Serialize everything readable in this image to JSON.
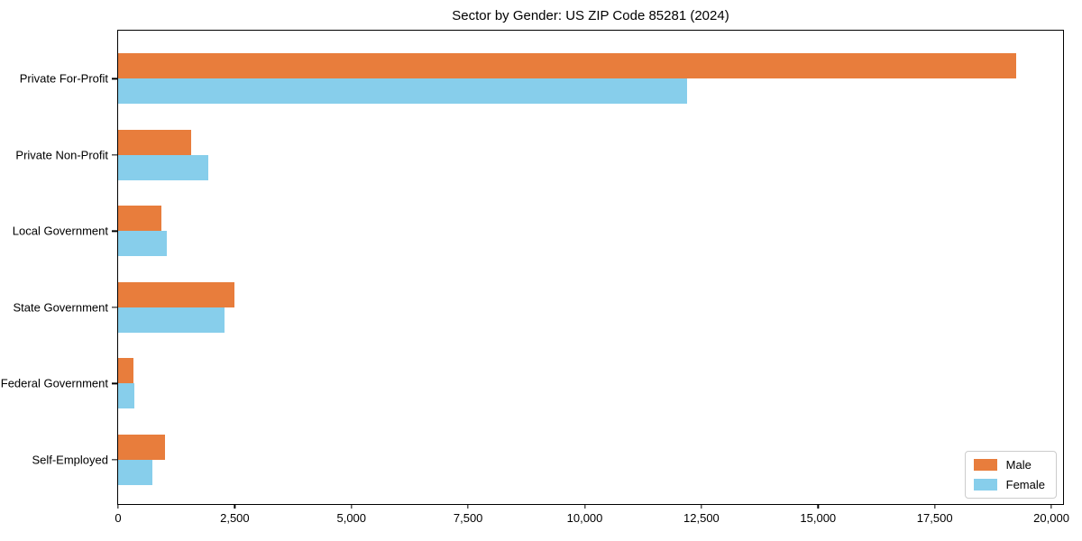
{
  "chart_data": {
    "type": "bar",
    "orientation": "horizontal",
    "title": "Sector by Gender: US ZIP Code 85281 (2024)",
    "categories": [
      "Private For-Profit",
      "Private Non-Profit",
      "Local Government",
      "State Government",
      "Federal Government",
      "Self-Employed"
    ],
    "series": [
      {
        "name": "Male",
        "color": "#e87d3c",
        "values": [
          19250,
          1560,
          930,
          2500,
          320,
          1010
        ]
      },
      {
        "name": "Female",
        "color": "#87ceeb",
        "values": [
          12200,
          1930,
          1050,
          2280,
          340,
          740
        ]
      }
    ],
    "xlabel": "",
    "ylabel": "",
    "xlim": [
      0,
      20250
    ],
    "xticks": [
      0,
      2500,
      5000,
      7500,
      10000,
      12500,
      15000,
      17500,
      20000
    ],
    "xtick_labels": [
      "0",
      "2,500",
      "5,000",
      "7,500",
      "10,000",
      "12,500",
      "15,000",
      "17,500",
      "20,000"
    ],
    "grid": false,
    "legend_position": "lower right"
  }
}
